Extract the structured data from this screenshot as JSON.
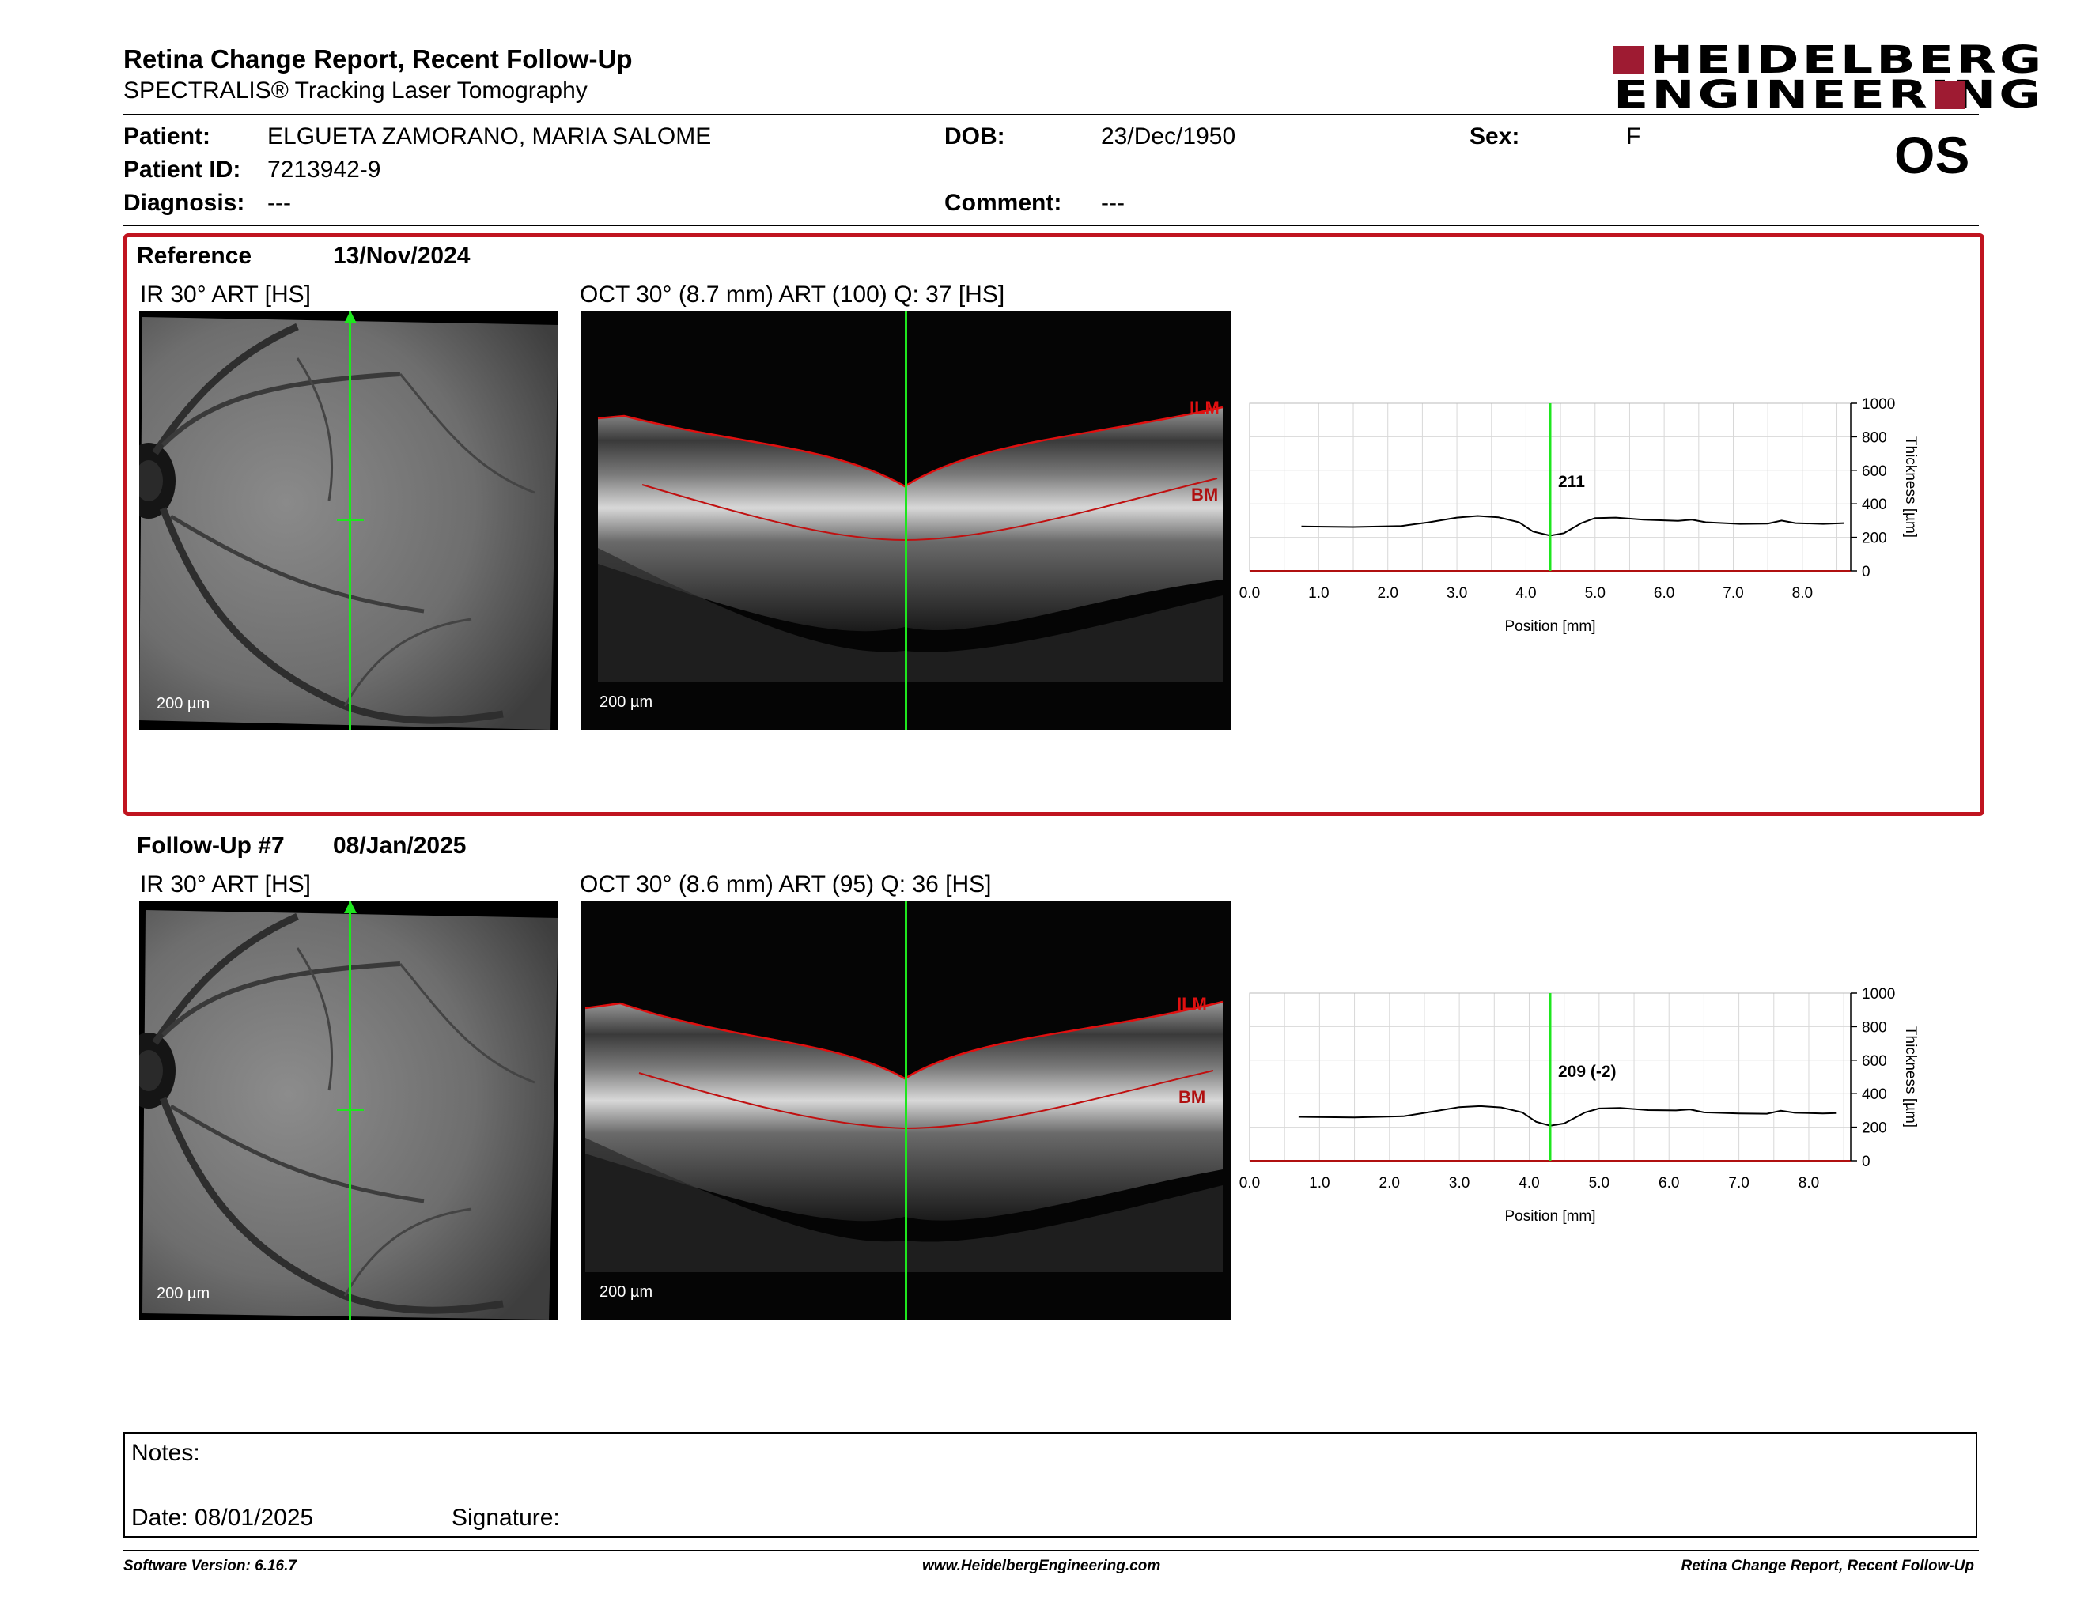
{
  "report": {
    "title": "Retina Change Report, Recent Follow-Up",
    "subtitle": "SPECTRALIS® Tracking Laser Tomography",
    "eye": "OS",
    "logo_line1": "HEIDELBERG",
    "logo_line2": "ENGINEERING"
  },
  "patient": {
    "name_label": "Patient:",
    "name": "ELGUETA ZAMORANO, MARIA SALOME",
    "id_label": "Patient ID:",
    "id": "7213942-9",
    "diagnosis_label": "Diagnosis:",
    "diagnosis": "---",
    "dob_label": "DOB:",
    "dob": "23/Dec/1950",
    "comment_label": "Comment:",
    "comment": "---",
    "sex_label": "Sex:",
    "sex": "F"
  },
  "reference": {
    "label": "Reference",
    "date": "13/Nov/2024",
    "ir_title": "IR 30° ART [HS]",
    "oct_title": "OCT 30° (8.7 mm) ART (100) Q: 37 [HS]",
    "ir_scale": "200 µm",
    "oct_scale": "200 µm",
    "ilm": "ILM",
    "bm": "BM",
    "marker_value": "211"
  },
  "followup": {
    "label": "Follow-Up #7",
    "date": "08/Jan/2025",
    "ir_title": "IR 30° ART [HS]",
    "oct_title": "OCT 30° (8.6 mm) ART (95) Q: 36 [HS]",
    "ir_scale": "200 µm",
    "oct_scale": "200 µm",
    "ilm": "ILM",
    "bm": "BM",
    "marker_value": "209 (-2)"
  },
  "chart_data": [
    {
      "type": "line",
      "xlabel": "Position [mm]",
      "ylabel": "Thickness [µm]",
      "xlim": [
        0,
        8.7
      ],
      "ylim": [
        0,
        1000
      ],
      "xticks": [
        "0.0",
        "1.0",
        "2.0",
        "3.0",
        "4.0",
        "5.0",
        "6.0",
        "7.0",
        "8.0"
      ],
      "yticks": [
        "0",
        "200",
        "400",
        "600",
        "800",
        "1000"
      ],
      "marker_x": 4.35,
      "marker_label": "211",
      "x": [
        0.75,
        1.5,
        2.2,
        2.6,
        3.0,
        3.3,
        3.6,
        3.9,
        4.1,
        4.35,
        4.55,
        4.8,
        5.0,
        5.3,
        5.7,
        6.2,
        6.4,
        6.6,
        7.1,
        7.5,
        7.7,
        7.9,
        8.3,
        8.6
      ],
      "y": [
        265,
        262,
        268,
        290,
        318,
        328,
        320,
        290,
        235,
        211,
        225,
        285,
        315,
        318,
        305,
        298,
        305,
        290,
        280,
        282,
        300,
        285,
        280,
        285
      ]
    },
    {
      "type": "line",
      "xlabel": "Position [mm]",
      "ylabel": "Thickness [µm]",
      "xlim": [
        0,
        8.6
      ],
      "ylim": [
        0,
        1000
      ],
      "xticks": [
        "0.0",
        "1.0",
        "2.0",
        "3.0",
        "4.0",
        "5.0",
        "6.0",
        "7.0",
        "8.0"
      ],
      "yticks": [
        "0",
        "200",
        "400",
        "600",
        "800",
        "1000"
      ],
      "marker_x": 4.3,
      "marker_label": "209 (-2)",
      "x": [
        0.7,
        1.5,
        2.2,
        2.6,
        3.0,
        3.3,
        3.6,
        3.9,
        4.1,
        4.3,
        4.5,
        4.8,
        5.0,
        5.3,
        5.7,
        6.1,
        6.3,
        6.5,
        7.0,
        7.4,
        7.6,
        7.8,
        8.2,
        8.4
      ],
      "y": [
        262,
        258,
        265,
        292,
        320,
        326,
        318,
        288,
        232,
        209,
        222,
        288,
        312,
        315,
        302,
        300,
        306,
        288,
        282,
        280,
        298,
        286,
        282,
        284
      ]
    }
  ],
  "notes": {
    "notes_label": "Notes:",
    "date_label": "Date: 08/01/2025",
    "signature_label": "Signature:"
  },
  "footer": {
    "software": "Software Version: 6.16.7",
    "website": "www.HeidelbergEngineering.com",
    "report_name": "Retina Change Report, Recent Follow-Up"
  }
}
